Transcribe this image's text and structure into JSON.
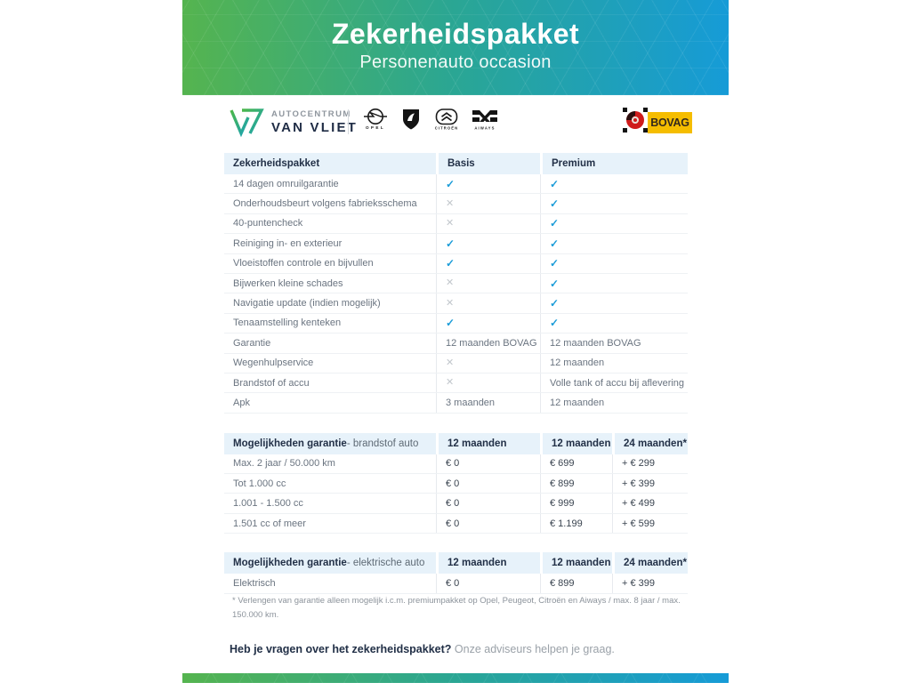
{
  "header": {
    "title": "Zekerheidspakket",
    "subtitle": "Personenauto occasion",
    "gradient_left": "#55b44f",
    "gradient_right": "#169bd7"
  },
  "branding": {
    "dealer_top": "AUTOCENTRUM",
    "dealer_bottom": "VAN VLIET",
    "brands": {
      "opel": "OPEL",
      "citroen": "CITROËN",
      "aiways": "AIWAYS"
    },
    "bovag": "BOVAG"
  },
  "package_table": {
    "headers": [
      "Zekerheidspakket",
      "Basis",
      "Premium"
    ],
    "rows": [
      {
        "label": "14 dagen omruilgarantie",
        "basis": "check",
        "premium": "check"
      },
      {
        "label": "Onderhoudsbeurt volgens fabrieksschema",
        "basis": "cross",
        "premium": "check"
      },
      {
        "label": "40-puntencheck",
        "basis": "cross",
        "premium": "check"
      },
      {
        "label": "Reiniging in- en exterieur",
        "basis": "check",
        "premium": "check"
      },
      {
        "label": "Vloeistoffen controle en bijvullen",
        "basis": "check",
        "premium": "check"
      },
      {
        "label": "Bijwerken kleine schades",
        "basis": "cross",
        "premium": "check"
      },
      {
        "label": "Navigatie update (indien mogelijk)",
        "basis": "cross",
        "premium": "check"
      },
      {
        "label": "Tenaamstelling kenteken",
        "basis": "check",
        "premium": "check"
      },
      {
        "label": "Garantie",
        "basis": "12 maanden BOVAG",
        "premium": "12 maanden BOVAG"
      },
      {
        "label": "Wegenhulpservice",
        "basis": "cross",
        "premium": "12 maanden"
      },
      {
        "label": "Brandstof of accu",
        "basis": "cross",
        "premium": "Volle tank of accu bij aflevering"
      },
      {
        "label": "Apk",
        "basis": "3 maanden",
        "premium": "12 maanden"
      }
    ]
  },
  "fuel_table": {
    "title_bold": "Mogelijkheden garantie",
    "title_rest": " - brandstof auto",
    "col_headers": [
      "12 maanden",
      "12 maanden",
      "24 maanden*"
    ],
    "rows": [
      {
        "label": "Max. 2 jaar / 50.000 km",
        "c1": "€ 0",
        "c2": "€ 699",
        "c3": "+ € 299"
      },
      {
        "label": "Tot 1.000 cc",
        "c1": "€ 0",
        "c2": "€ 899",
        "c3": "+ € 399"
      },
      {
        "label": "1.001 - 1.500 cc",
        "c1": "€ 0",
        "c2": "€ 999",
        "c3": "+ € 499"
      },
      {
        "label": "1.501 cc of meer",
        "c1": "€ 0",
        "c2": "€ 1.199",
        "c3": "+ € 599"
      }
    ]
  },
  "electric_table": {
    "title_bold": "Mogelijkheden garantie",
    "title_rest": " - elektrische auto",
    "col_headers": [
      "12 maanden",
      "12 maanden",
      "24 maanden*"
    ],
    "rows": [
      {
        "label": "Elektrisch",
        "c1": "€ 0",
        "c2": "€ 899",
        "c3": "+ € 399"
      }
    ]
  },
  "footnote": "* Verlengen van garantie alleen mogelijk i.c.m. premiumpakket op Opel, Peugeot, Citroën en Aiways / max. 8 jaar / max. 150.000 km.",
  "footer": {
    "question_bold": "Heb je vragen over het zekerheidspakket?",
    "question_rest": " Onze adviseurs helpen je graag."
  }
}
